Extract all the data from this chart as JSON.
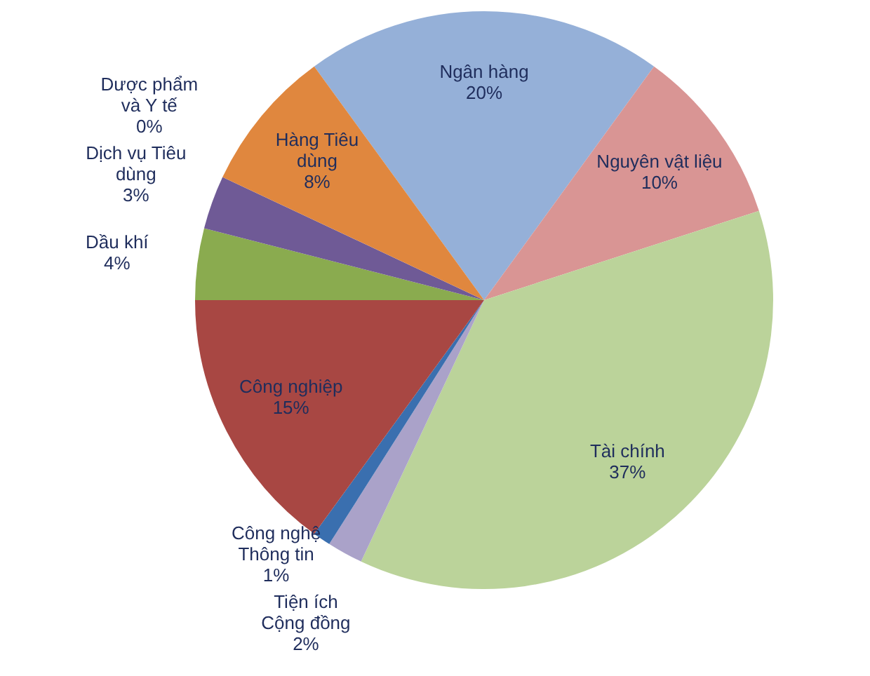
{
  "chart_data": {
    "type": "pie",
    "categories": [
      "Ngân hàng",
      "Nguyên vật liệu",
      "Tài chính",
      "Tiện ích Cộng đồng",
      "Công nghệ Thông tin",
      "Công nghiệp",
      "Dầu khí",
      "Dịch vụ Tiêu dùng",
      "Dược phẩm và Y tế",
      "Hàng Tiêu dùng"
    ],
    "values": [
      20,
      10,
      37,
      2,
      1,
      15,
      4,
      3,
      0,
      8
    ],
    "value_labels": [
      "20%",
      "10%",
      "37%",
      "2%",
      "1%",
      "15%",
      "4%",
      "3%",
      "0%",
      "8%"
    ],
    "colors": [
      "#95b0d8",
      "#d99594",
      "#bbd39a",
      "#aaa2c9",
      "#3a6faf",
      "#a84743",
      "#8aab4f",
      "#6f5a96",
      "#3aa0b8",
      "#e0873e"
    ],
    "legend": false
  }
}
